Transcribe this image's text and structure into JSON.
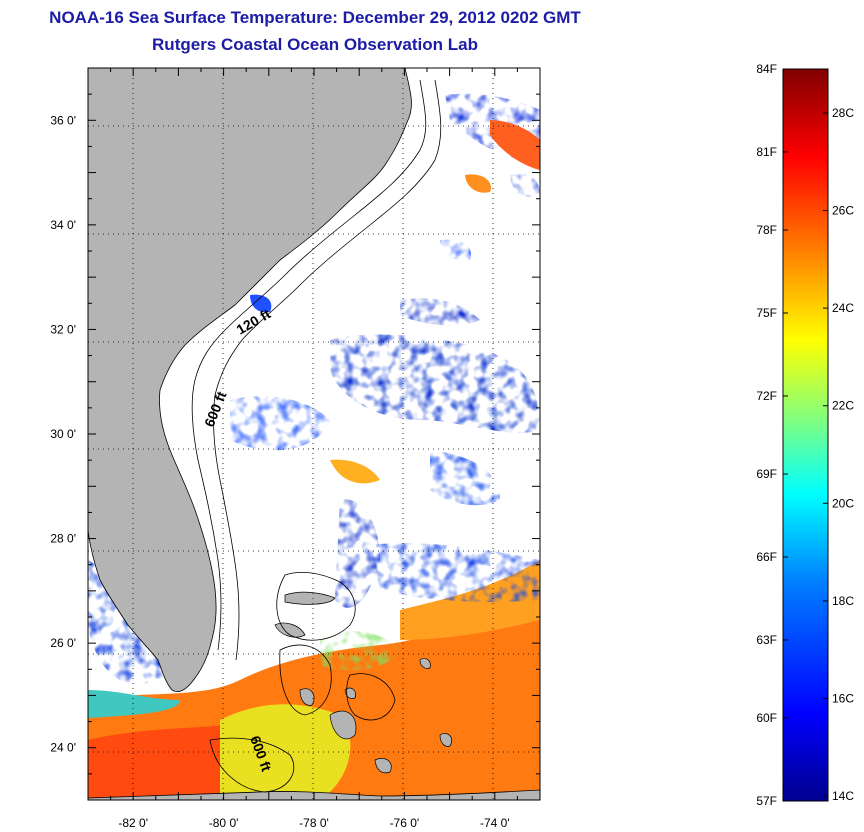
{
  "title": {
    "line1": "NOAA-16 Sea Surface Temperature:  December 29, 2012 0202 GMT",
    "line2": "Rutgers Coastal Ocean Observation Lab"
  },
  "map": {
    "lon_range": [
      -83.0,
      -73.0
    ],
    "lat_range": [
      23.0,
      37.0
    ],
    "lon_ticks": [
      {
        "value": -82,
        "label": "-82 0'"
      },
      {
        "value": -80,
        "label": "-80 0'"
      },
      {
        "value": -78,
        "label": "-78 0'"
      },
      {
        "value": -76,
        "label": "-76 0'"
      },
      {
        "value": -74,
        "label": "-74 0'"
      }
    ],
    "lat_ticks": [
      {
        "value": 36,
        "label": "36 0'"
      },
      {
        "value": 34,
        "label": "34 0'"
      },
      {
        "value": 32,
        "label": "32 0'"
      },
      {
        "value": 30,
        "label": "30 0'"
      },
      {
        "value": 28,
        "label": "28 0'"
      },
      {
        "value": 26,
        "label": "26 0'"
      },
      {
        "value": 24,
        "label": "24 0'"
      }
    ],
    "grid": "dotted",
    "contour_labels": [
      "120 ft",
      "600 ft",
      "600 ft"
    ],
    "land_color": "#b4b4b4",
    "no_data_color": "#ffffff"
  },
  "colorbar": {
    "min_c": 13.9,
    "max_c": 28.9,
    "fahrenheit_labels": [
      {
        "value_c": 28.9,
        "label": "84F"
      },
      {
        "value_c": 27.2,
        "label": "81F"
      },
      {
        "value_c": 25.6,
        "label": "78F"
      },
      {
        "value_c": 23.9,
        "label": "75F"
      },
      {
        "value_c": 22.2,
        "label": "72F"
      },
      {
        "value_c": 20.6,
        "label": "69F"
      },
      {
        "value_c": 18.9,
        "label": "66F"
      },
      {
        "value_c": 17.2,
        "label": "63F"
      },
      {
        "value_c": 15.6,
        "label": "60F"
      },
      {
        "value_c": 13.9,
        "label": "57F"
      }
    ],
    "celsius_labels": [
      {
        "value_c": 28,
        "label": "28C"
      },
      {
        "value_c": 26,
        "label": "26C"
      },
      {
        "value_c": 24,
        "label": "24C"
      },
      {
        "value_c": 22,
        "label": "22C"
      },
      {
        "value_c": 20,
        "label": "20C"
      },
      {
        "value_c": 18,
        "label": "18C"
      },
      {
        "value_c": 16,
        "label": "16C"
      },
      {
        "value_c": 14,
        "label": "14C"
      }
    ],
    "colors": [
      "#00008f",
      "#0000ff",
      "#0080ff",
      "#00ffff",
      "#80ff80",
      "#ffff00",
      "#ff8000",
      "#ff0000",
      "#800000"
    ]
  }
}
